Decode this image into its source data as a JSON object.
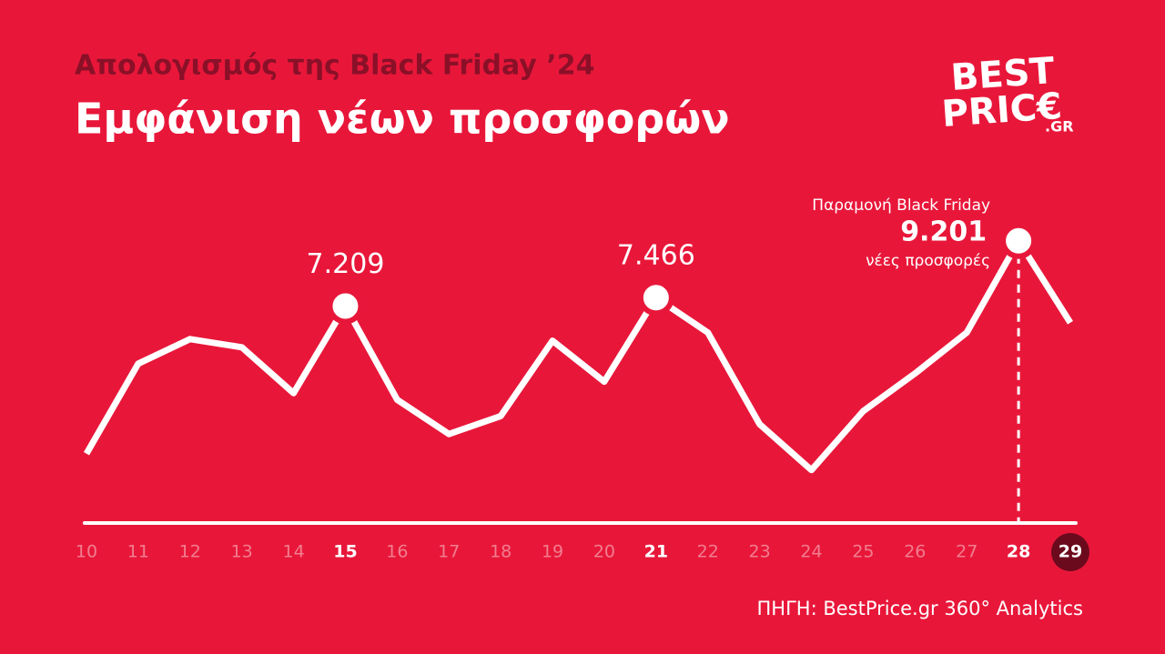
{
  "chart_data": {
    "type": "line",
    "supertitle": "Απολογισμός της Black Friday ’24",
    "title": "Εμφάνιση νέων προσφορών",
    "logo": [
      "BEST",
      "PRIC€",
      ".GR"
    ],
    "categories": [
      "10",
      "11",
      "12",
      "13",
      "14",
      "15",
      "16",
      "17",
      "18",
      "19",
      "20",
      "21",
      "22",
      "23",
      "24",
      "25",
      "26",
      "27",
      "28",
      "29"
    ],
    "values": [
      2700,
      5450,
      6200,
      5950,
      4550,
      7209,
      4350,
      3300,
      3850,
      6150,
      4900,
      7466,
      6400,
      3600,
      2200,
      4000,
      5150,
      6400,
      9201,
      6700
    ],
    "value_labels": [
      null,
      null,
      null,
      null,
      null,
      "7.209",
      null,
      null,
      null,
      null,
      null,
      "7.466",
      null,
      null,
      null,
      null,
      null,
      null,
      "9.201",
      null
    ],
    "annotation_index": 18,
    "annotation_above": "Παραμονή Black Friday",
    "annotation_below": "νέες προσφορές",
    "current_index": 19,
    "color": "#ffffff",
    "ylim": [
      0,
      10000
    ],
    "source": "ΠΗΓΗ: BestPrice.gr 360° Analytics"
  }
}
